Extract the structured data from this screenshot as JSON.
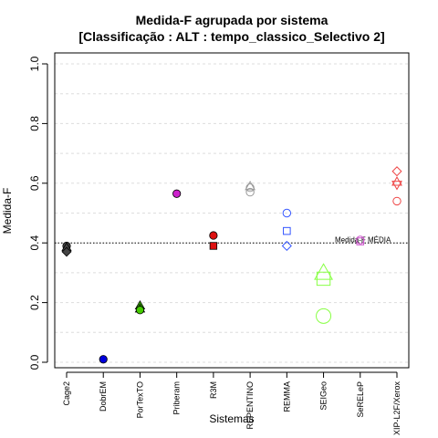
{
  "chart_data": {
    "type": "scatter",
    "title_line1": "Medida-F agrupada por sistema",
    "title_line2": "[Classificação : ALT : tempo_classico_Selectivo 2]",
    "xlabel": "Sistemas",
    "ylabel": "Medida-F",
    "ylim": [
      0,
      1
    ],
    "y_ticks": [
      "0.0",
      "0.2",
      "0.4",
      "0.6",
      "0.8",
      "1.0"
    ],
    "grid": "horizontal dashed",
    "categories": [
      "Cage2",
      "DobrEM",
      "PorTexTO",
      "Priberam",
      "R3M",
      "REPENTINO",
      "REMMA",
      "SEIGeo",
      "SeRELeP",
      "XIP-L2F/Xerox"
    ],
    "reference_line": {
      "value": 0.4,
      "label": "Medida-F MÉDIA"
    },
    "series": [
      {
        "category": "Cage2",
        "color": "#444444",
        "points": [
          {
            "y": 0.39,
            "shape": "circle",
            "filled": true,
            "size": "small"
          },
          {
            "y": 0.385,
            "shape": "triangle",
            "filled": true,
            "size": "small"
          },
          {
            "y": 0.37,
            "shape": "diamond",
            "filled": true,
            "size": "small"
          }
        ]
      },
      {
        "category": "DobrEM",
        "color": "#0000dd",
        "points": [
          {
            "y": 0.01,
            "shape": "circle",
            "filled": true,
            "size": "small"
          }
        ]
      },
      {
        "category": "PorTexTO",
        "color": "#44cc00",
        "points": [
          {
            "y": 0.19,
            "shape": "triangle",
            "filled": true,
            "size": "small"
          },
          {
            "y": 0.18,
            "shape": "triangle",
            "filled": true,
            "size": "small"
          },
          {
            "y": 0.175,
            "shape": "circle",
            "filled": true,
            "size": "small"
          }
        ]
      },
      {
        "category": "Priberam",
        "color": "#cc22cc",
        "points": [
          {
            "y": 0.565,
            "shape": "circle",
            "filled": true,
            "size": "small"
          }
        ]
      },
      {
        "category": "R3M",
        "color": "#dd1111",
        "points": [
          {
            "y": 0.425,
            "shape": "circle",
            "filled": true,
            "size": "small"
          },
          {
            "y": 0.39,
            "shape": "square",
            "filled": true,
            "size": "small"
          }
        ]
      },
      {
        "category": "REPENTINO",
        "color": "#999999",
        "points": [
          {
            "y": 0.59,
            "shape": "triangle",
            "filled": false,
            "size": "small"
          },
          {
            "y": 0.585,
            "shape": "circle",
            "filled": false,
            "size": "small"
          },
          {
            "y": 0.57,
            "shape": "circle",
            "filled": false,
            "size": "small"
          }
        ]
      },
      {
        "category": "REMMA",
        "color": "#3355ff",
        "points": [
          {
            "y": 0.5,
            "shape": "circle",
            "filled": false,
            "size": "small"
          },
          {
            "y": 0.44,
            "shape": "square",
            "filled": false,
            "size": "small"
          },
          {
            "y": 0.39,
            "shape": "diamond",
            "filled": false,
            "size": "small"
          }
        ]
      },
      {
        "category": "SEIGeo",
        "color": "#88ff44",
        "points": [
          {
            "y": 0.3,
            "shape": "triangle",
            "filled": false,
            "size": "large"
          },
          {
            "y": 0.28,
            "shape": "square",
            "filled": false,
            "size": "large"
          },
          {
            "y": 0.155,
            "shape": "circle",
            "filled": false,
            "size": "large"
          }
        ]
      },
      {
        "category": "SeRELeP",
        "color": "#cc55cc",
        "points": [
          {
            "y": 0.41,
            "shape": "circle",
            "filled": false,
            "size": "small"
          },
          {
            "y": 0.405,
            "shape": "square",
            "filled": false,
            "size": "small"
          }
        ]
      },
      {
        "category": "XIP-L2F/Xerox",
        "color": "#ee4444",
        "points": [
          {
            "y": 0.64,
            "shape": "diamond",
            "filled": false,
            "size": "small"
          },
          {
            "y": 0.605,
            "shape": "triangle",
            "filled": false,
            "size": "small"
          },
          {
            "y": 0.595,
            "shape": "triangle-down",
            "filled": false,
            "size": "small"
          },
          {
            "y": 0.54,
            "shape": "circle",
            "filled": false,
            "size": "small"
          }
        ]
      }
    ]
  }
}
